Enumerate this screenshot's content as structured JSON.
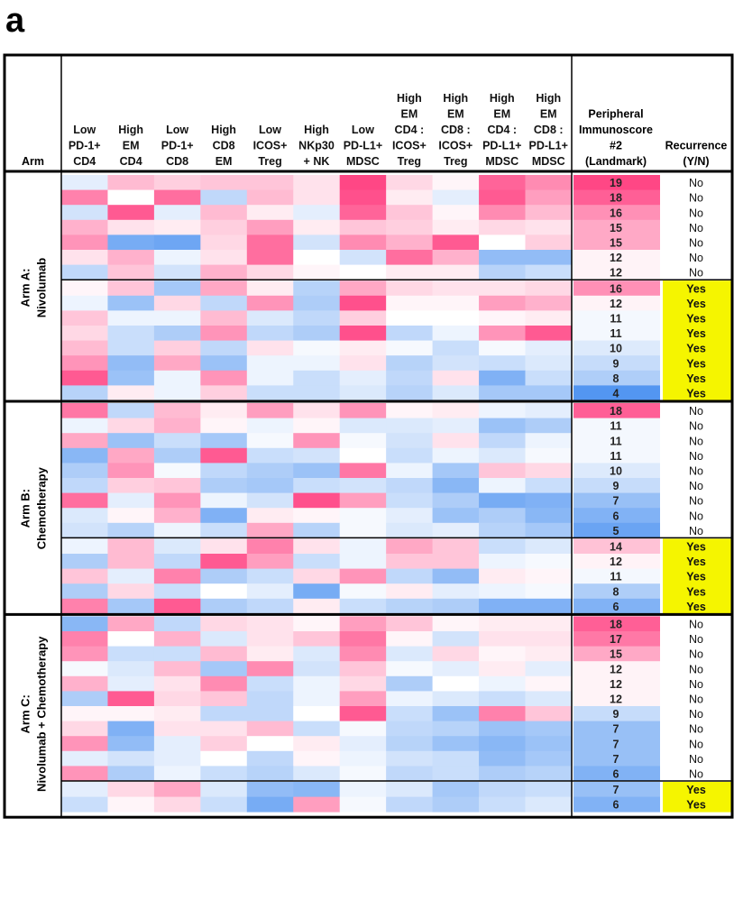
{
  "panel_label": "a",
  "colors": {
    "high": "#ff3d7f",
    "mid": "#ffffff",
    "low": "#4a90f0",
    "yes_fill": "#f5f500",
    "border": "#000000"
  },
  "chart_data": {
    "type": "heatmap",
    "arm_header": "Arm",
    "columns": [
      [
        "Low",
        "PD-1+",
        "CD4"
      ],
      [
        "High",
        "EM",
        "CD4"
      ],
      [
        "Low",
        "PD-1+",
        "CD8"
      ],
      [
        "High",
        "CD8",
        "EM"
      ],
      [
        "Low",
        "ICOS+",
        "Treg"
      ],
      [
        "High",
        "NKp30",
        "+ NK"
      ],
      [
        "Low",
        "PD-L1+",
        "MDSC"
      ],
      [
        "High",
        "EM",
        "CD4 :",
        "ICOS+",
        "Treg"
      ],
      [
        "High",
        "EM",
        "CD8 :",
        "ICOS+",
        "Treg"
      ],
      [
        "High",
        "EM",
        "CD4 :",
        "PD-L1+",
        "MDSC"
      ],
      [
        "High",
        "EM",
        "CD8 :",
        "PD-L1+",
        "MDSC"
      ]
    ],
    "score_header": [
      "Peripheral",
      "Immunoscore",
      "#2",
      "(Landmark)"
    ],
    "recurrence_header": [
      "Recurrence",
      "(Y/N)"
    ],
    "score_range": [
      4,
      19
    ],
    "arms": [
      {
        "label_lines": [
          "Arm A:",
          "Nivolumab"
        ],
        "groups": [
          {
            "rows": [
              {
                "score": 19,
                "recurrence": "No",
                "cells": [
                  -0.15,
                  0.35,
                  0.25,
                  0.3,
                  0.3,
                  0.15,
                  0.95,
                  0.2,
                  0.05,
                  0.8,
                  0.6
                ]
              },
              {
                "score": 18,
                "recurrence": "No",
                "cells": [
                  0.65,
                  0.0,
                  0.75,
                  -0.35,
                  0.35,
                  0.15,
                  0.9,
                  0.1,
                  -0.15,
                  0.85,
                  0.5
                ]
              },
              {
                "score": 16,
                "recurrence": "No",
                "cells": [
                  -0.25,
                  0.85,
                  -0.15,
                  0.35,
                  0.1,
                  -0.15,
                  0.8,
                  0.3,
                  0.05,
                  0.6,
                  0.35
                ]
              },
              {
                "score": 15,
                "recurrence": "No",
                "cells": [
                  0.4,
                  0.15,
                  0.1,
                  0.25,
                  0.5,
                  0.1,
                  0.3,
                  0.25,
                  0.1,
                  0.2,
                  0.15
                ]
              },
              {
                "score": 15,
                "recurrence": "No",
                "cells": [
                  0.55,
                  -0.75,
                  -0.8,
                  0.2,
                  0.75,
                  -0.25,
                  0.6,
                  0.4,
                  0.85,
                  0.0,
                  0.25
                ]
              },
              {
                "score": 12,
                "recurrence": "No",
                "cells": [
                  0.15,
                  0.4,
                  -0.1,
                  0.15,
                  0.75,
                  0.0,
                  -0.25,
                  0.75,
                  0.4,
                  -0.6,
                  -0.6
                ]
              },
              {
                "score": 12,
                "recurrence": "No",
                "cells": [
                  -0.35,
                  0.3,
                  -0.25,
                  0.4,
                  0.2,
                  0.05,
                  0.0,
                  0.1,
                  0.1,
                  -0.4,
                  -0.3
                ]
              }
            ]
          },
          {
            "rows": [
              {
                "score": 16,
                "recurrence": "Yes",
                "cells": [
                  0.05,
                  0.3,
                  -0.5,
                  0.45,
                  0.1,
                  -0.4,
                  0.45,
                  0.2,
                  0.15,
                  0.15,
                  0.2
                ]
              },
              {
                "score": 12,
                "recurrence": "Yes",
                "cells": [
                  -0.1,
                  -0.55,
                  0.2,
                  -0.35,
                  0.55,
                  -0.45,
                  0.9,
                  0.05,
                  0.05,
                  0.5,
                  0.4
                ]
              },
              {
                "score": 11,
                "recurrence": "Yes",
                "cells": [
                  0.3,
                  -0.1,
                  -0.1,
                  0.35,
                  -0.2,
                  -0.35,
                  0.25,
                  0.0,
                  0.0,
                  0.05,
                  0.1
                ]
              },
              {
                "score": 11,
                "recurrence": "Yes",
                "cells": [
                  0.2,
                  -0.3,
                  -0.45,
                  0.55,
                  -0.35,
                  -0.45,
                  0.9,
                  -0.35,
                  -0.1,
                  0.55,
                  0.85
                ]
              },
              {
                "score": 10,
                "recurrence": "Yes",
                "cells": [
                  0.35,
                  -0.3,
                  0.25,
                  -0.35,
                  0.15,
                  -0.05,
                  0.1,
                  -0.05,
                  -0.3,
                  -0.05,
                  -0.15
                ]
              },
              {
                "score": 9,
                "recurrence": "Yes",
                "cells": [
                  0.55,
                  -0.6,
                  0.45,
                  -0.55,
                  -0.1,
                  -0.1,
                  0.15,
                  -0.4,
                  -0.25,
                  -0.3,
                  -0.2
                ]
              },
              {
                "score": 8,
                "recurrence": "Yes",
                "cells": [
                  0.85,
                  -0.55,
                  -0.1,
                  0.55,
                  -0.1,
                  -0.3,
                  -0.15,
                  -0.35,
                  0.15,
                  -0.7,
                  -0.3
                ]
              },
              {
                "score": 4,
                "recurrence": "Yes",
                "cells": [
                  -0.4,
                  0.1,
                  -0.1,
                  0.25,
                  -0.3,
                  -0.3,
                  -0.2,
                  -0.4,
                  -0.2,
                  -0.5,
                  -0.5
                ]
              }
            ]
          }
        ]
      },
      {
        "label_lines": [
          "Arm B:",
          "Chemotherapy"
        ],
        "groups": [
          {
            "rows": [
              {
                "score": 18,
                "recurrence": "No",
                "cells": [
                  0.7,
                  -0.35,
                  0.35,
                  0.1,
                  0.5,
                  0.15,
                  0.55,
                  0.05,
                  0.1,
                  -0.1,
                  -0.15
                ]
              },
              {
                "score": 11,
                "recurrence": "No",
                "cells": [
                  -0.1,
                  0.2,
                  0.4,
                  0.05,
                  -0.1,
                  0.05,
                  -0.2,
                  -0.2,
                  -0.15,
                  -0.55,
                  -0.45
                ]
              },
              {
                "score": 11,
                "recurrence": "No",
                "cells": [
                  0.45,
                  -0.55,
                  -0.3,
                  -0.5,
                  -0.05,
                  0.55,
                  -0.05,
                  -0.25,
                  0.15,
                  -0.35,
                  -0.1
                ]
              },
              {
                "score": 11,
                "recurrence": "No",
                "cells": [
                  -0.65,
                  0.45,
                  -0.45,
                  0.85,
                  -0.3,
                  -0.25,
                  0.0,
                  -0.3,
                  -0.1,
                  -0.2,
                  -0.05
                ]
              },
              {
                "score": 10,
                "recurrence": "No",
                "cells": [
                  -0.45,
                  0.55,
                  -0.05,
                  -0.35,
                  -0.45,
                  -0.55,
                  0.7,
                  -0.1,
                  -0.5,
                  0.3,
                  0.2
                ]
              },
              {
                "score": 9,
                "recurrence": "No",
                "cells": [
                  -0.35,
                  0.25,
                  0.3,
                  -0.45,
                  -0.5,
                  -0.3,
                  -0.25,
                  -0.35,
                  -0.65,
                  -0.1,
                  -0.3
                ]
              },
              {
                "score": 7,
                "recurrence": "No",
                "cells": [
                  0.75,
                  -0.15,
                  0.55,
                  -0.1,
                  -0.25,
                  0.9,
                  0.5,
                  -0.3,
                  -0.45,
                  -0.75,
                  -0.7
                ]
              },
              {
                "score": 6,
                "recurrence": "No",
                "cells": [
                  -0.2,
                  0.05,
                  0.4,
                  -0.7,
                  0.1,
                  0.05,
                  -0.05,
                  -0.15,
                  -0.55,
                  -0.45,
                  -0.65
                ]
              },
              {
                "score": 5,
                "recurrence": "No",
                "cells": [
                  -0.25,
                  -0.4,
                  -0.1,
                  -0.3,
                  0.45,
                  -0.4,
                  -0.05,
                  -0.2,
                  -0.15,
                  -0.4,
                  -0.5
                ]
              }
            ]
          },
          {
            "rows": [
              {
                "score": 14,
                "recurrence": "Yes",
                "cells": [
                  -0.1,
                  0.35,
                  -0.2,
                  0.15,
                  0.65,
                  0.15,
                  -0.1,
                  0.45,
                  0.3,
                  -0.3,
                  -0.2
                ]
              },
              {
                "score": 12,
                "recurrence": "Yes",
                "cells": [
                  -0.45,
                  0.35,
                  -0.35,
                  0.85,
                  0.5,
                  -0.3,
                  -0.1,
                  0.3,
                  0.3,
                  -0.1,
                  -0.05
                ]
              },
              {
                "score": 11,
                "recurrence": "Yes",
                "cells": [
                  0.3,
                  -0.15,
                  0.65,
                  -0.45,
                  -0.3,
                  0.2,
                  0.55,
                  -0.35,
                  -0.6,
                  0.1,
                  0.05
                ]
              },
              {
                "score": 8,
                "recurrence": "Yes",
                "cells": [
                  -0.45,
                  0.2,
                  -0.3,
                  0.0,
                  -0.15,
                  -0.75,
                  -0.05,
                  0.1,
                  -0.15,
                  -0.1,
                  -0.05
                ]
              },
              {
                "score": 6,
                "recurrence": "Yes",
                "cells": [
                  0.65,
                  -0.5,
                  0.85,
                  -0.45,
                  -0.35,
                  0.1,
                  -0.3,
                  -0.4,
                  -0.45,
                  -0.7,
                  -0.7
                ]
              }
            ]
          }
        ]
      },
      {
        "label_lines": [
          "Arm C:",
          "Nivolumab + Chemotherapy"
        ],
        "groups": [
          {
            "rows": [
              {
                "score": 18,
                "recurrence": "No",
                "cells": [
                  -0.65,
                  0.45,
                  -0.35,
                  0.2,
                  0.15,
                  0.05,
                  0.5,
                  0.3,
                  0.05,
                  0.1,
                  0.1
                ]
              },
              {
                "score": 17,
                "recurrence": "No",
                "cells": [
                  0.65,
                  0.0,
                  0.4,
                  -0.2,
                  0.15,
                  0.3,
                  0.7,
                  0.05,
                  -0.25,
                  0.15,
                  0.15
                ]
              },
              {
                "score": 15,
                "recurrence": "No",
                "cells": [
                  0.55,
                  -0.3,
                  -0.3,
                  0.35,
                  0.1,
                  -0.2,
                  0.6,
                  -0.2,
                  0.2,
                  0.05,
                  0.1
                ]
              },
              {
                "score": 12,
                "recurrence": "No",
                "cells": [
                  -0.05,
                  -0.2,
                  0.35,
                  -0.5,
                  0.6,
                  -0.25,
                  0.3,
                  -0.05,
                  -0.15,
                  0.1,
                  -0.15
                ]
              },
              {
                "score": 12,
                "recurrence": "No",
                "cells": [
                  0.4,
                  -0.15,
                  0.15,
                  0.6,
                  -0.3,
                  -0.1,
                  0.2,
                  -0.45,
                  0.0,
                  -0.1,
                  0.05
                ]
              },
              {
                "score": 12,
                "recurrence": "No",
                "cells": [
                  -0.45,
                  0.85,
                  0.2,
                  0.3,
                  -0.35,
                  -0.1,
                  0.5,
                  -0.1,
                  -0.2,
                  -0.3,
                  -0.2
                ]
              },
              {
                "score": 9,
                "recurrence": "No",
                "cells": [
                  0.05,
                  0.05,
                  0.1,
                  -0.35,
                  -0.35,
                  0.0,
                  0.85,
                  -0.3,
                  -0.55,
                  0.65,
                  0.3
                ]
              },
              {
                "score": 7,
                "recurrence": "No",
                "cells": [
                  0.2,
                  -0.7,
                  0.15,
                  0.15,
                  0.35,
                  -0.3,
                  -0.05,
                  -0.35,
                  -0.4,
                  -0.55,
                  -0.5
                ]
              },
              {
                "score": 7,
                "recurrence": "No",
                "cells": [
                  0.55,
                  -0.6,
                  -0.15,
                  0.25,
                  0.0,
                  0.1,
                  -0.15,
                  -0.4,
                  -0.55,
                  -0.65,
                  -0.55
                ]
              },
              {
                "score": 7,
                "recurrence": "No",
                "cells": [
                  -0.15,
                  -0.25,
                  -0.15,
                  0.0,
                  -0.35,
                  0.05,
                  -0.1,
                  -0.25,
                  -0.3,
                  -0.6,
                  -0.5
                ]
              },
              {
                "score": 6,
                "recurrence": "No",
                "cells": [
                  0.55,
                  -0.45,
                  -0.1,
                  -0.3,
                  -0.4,
                  -0.2,
                  -0.05,
                  -0.35,
                  -0.3,
                  -0.45,
                  -0.4
                ]
              }
            ]
          },
          {
            "rows": [
              {
                "score": 7,
                "recurrence": "Yes",
                "cells": [
                  -0.15,
                  0.2,
                  0.45,
                  -0.2,
                  -0.6,
                  -0.65,
                  -0.1,
                  -0.2,
                  -0.5,
                  -0.35,
                  -0.3
                ]
              },
              {
                "score": 6,
                "recurrence": "Yes",
                "cells": [
                  -0.3,
                  0.05,
                  0.2,
                  -0.3,
                  -0.75,
                  0.5,
                  -0.05,
                  -0.35,
                  -0.45,
                  -0.3,
                  -0.2
                ]
              }
            ]
          }
        ]
      }
    ]
  }
}
